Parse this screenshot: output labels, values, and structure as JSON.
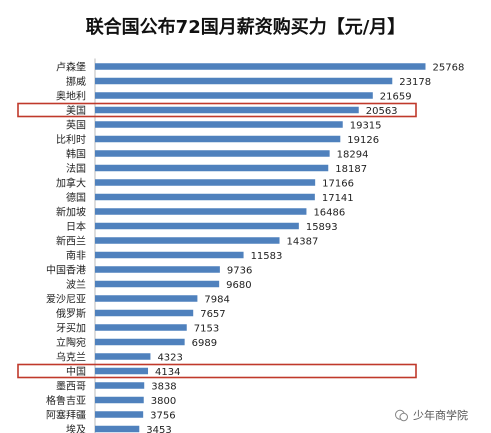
{
  "chart_data": {
    "type": "bar",
    "orientation": "horizontal",
    "title": "联合国公布72国月薪资购买力【元/月】",
    "categories": [
      "卢森堡",
      "挪威",
      "奥地利",
      "美国",
      "英国",
      "比利时",
      "韩国",
      "法国",
      "加拿大",
      "德国",
      "新加坡",
      "日本",
      "新西兰",
      "南非",
      "中国香港",
      "波兰",
      "爱沙尼亚",
      "俄罗斯",
      "牙买加",
      "立陶宛",
      "乌克兰",
      "中国",
      "墨西哥",
      "格鲁吉亚",
      "阿塞拜疆",
      "埃及"
    ],
    "values": [
      25768,
      23178,
      21659,
      20563,
      19315,
      19126,
      18294,
      18187,
      17166,
      17141,
      16486,
      15893,
      14387,
      11583,
      9736,
      9680,
      7984,
      7657,
      7153,
      6989,
      4323,
      4134,
      3838,
      3800,
      3756,
      3453
    ],
    "highlighted": [
      "美国",
      "中国"
    ],
    "xlim": [
      0,
      30000
    ],
    "grid": false,
    "legend": false,
    "bar_color": "#4f81bd",
    "highlight_color": "#c0392b"
  },
  "watermark": {
    "text": "少年商学院",
    "icon": "wechat-logo"
  }
}
